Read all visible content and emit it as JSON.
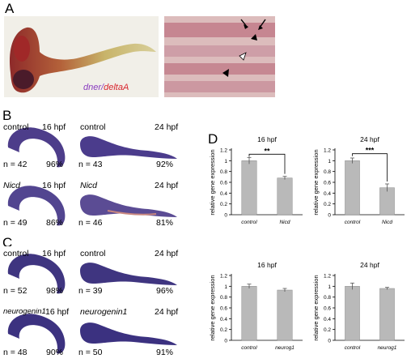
{
  "panel_labels": {
    "a": "A",
    "b": "B",
    "c": "C",
    "d": "D"
  },
  "panel_a": {
    "legend_prefix": "dner",
    "legend_sep": "/",
    "legend_suffix": "deltaA",
    "colors": {
      "dner": "#8a3cc0",
      "deltaA": "#d8242e"
    }
  },
  "panel_b": {
    "rows": [
      {
        "left": {
          "cond": "control",
          "stage": "16 hpf",
          "n": "n = 42",
          "pct": "96%"
        },
        "right": {
          "cond": "control",
          "stage": "24 hpf",
          "n": "n = 43",
          "pct": "92%"
        }
      },
      {
        "left": {
          "cond": "Nicd",
          "stage": "16 hpf",
          "n": "n = 49",
          "pct": "86%"
        },
        "right": {
          "cond": "Nicd",
          "stage": "24 hpf",
          "n": "n = 46",
          "pct": "81%"
        }
      }
    ]
  },
  "panel_c": {
    "rows": [
      {
        "left": {
          "cond": "control",
          "stage": "16 hpf",
          "n": "n = 52",
          "pct": "98%"
        },
        "right": {
          "cond": "control",
          "stage": "24 hpf",
          "n": "n = 39",
          "pct": "96%"
        }
      },
      {
        "left": {
          "cond": "neurogenin1",
          "stage": "16 hpf",
          "n": "n = 48",
          "pct": "90%"
        },
        "right": {
          "cond": "neurogenin1",
          "stage": "24 hpf",
          "n": "n = 50",
          "pct": "91%"
        }
      }
    ]
  },
  "chart_data": [
    {
      "type": "bar",
      "title": "16 hpf",
      "categories": [
        "control",
        "Nicd"
      ],
      "values": [
        1.0,
        0.68
      ],
      "errors": [
        0.06,
        0.03
      ],
      "ylabel": "relative gene expression",
      "ylim": [
        0,
        1.2
      ],
      "yticks": [
        "0",
        "0.2",
        "0.4",
        "0.6",
        "0.8",
        "1",
        "1.2"
      ],
      "significance": "**",
      "bar_color": "#b9b9b9"
    },
    {
      "type": "bar",
      "title": "24 hpf",
      "categories": [
        "control",
        "Nicd"
      ],
      "values": [
        1.0,
        0.5
      ],
      "errors": [
        0.05,
        0.07
      ],
      "ylabel": "relative gene expression",
      "ylim": [
        0,
        1.2
      ],
      "yticks": [
        "0",
        "0.2",
        "0.4",
        "0.6",
        "0.8",
        "1",
        "1.2"
      ],
      "significance": "***",
      "bar_color": "#b9b9b9"
    },
    {
      "type": "bar",
      "title": "16 hpf",
      "categories": [
        "control",
        "neurog1"
      ],
      "values": [
        1.0,
        0.93
      ],
      "errors": [
        0.04,
        0.03
      ],
      "ylabel": "relative gene expression",
      "ylim": [
        0,
        1.2
      ],
      "yticks": [
        "0",
        "0.2",
        "0.4",
        "0.6",
        "0.8",
        "1",
        "1.2"
      ],
      "significance": "",
      "bar_color": "#b9b9b9"
    },
    {
      "type": "bar",
      "title": "24 hpf",
      "categories": [
        "control",
        "neurog1"
      ],
      "values": [
        1.0,
        0.96
      ],
      "errors": [
        0.06,
        0.02
      ],
      "ylabel": "relative gene expression",
      "ylim": [
        0,
        1.2
      ],
      "yticks": [
        "0",
        "0.2",
        "0.4",
        "0.6",
        "0.8",
        "1",
        "1.2"
      ],
      "significance": "",
      "bar_color": "#b9b9b9"
    }
  ]
}
